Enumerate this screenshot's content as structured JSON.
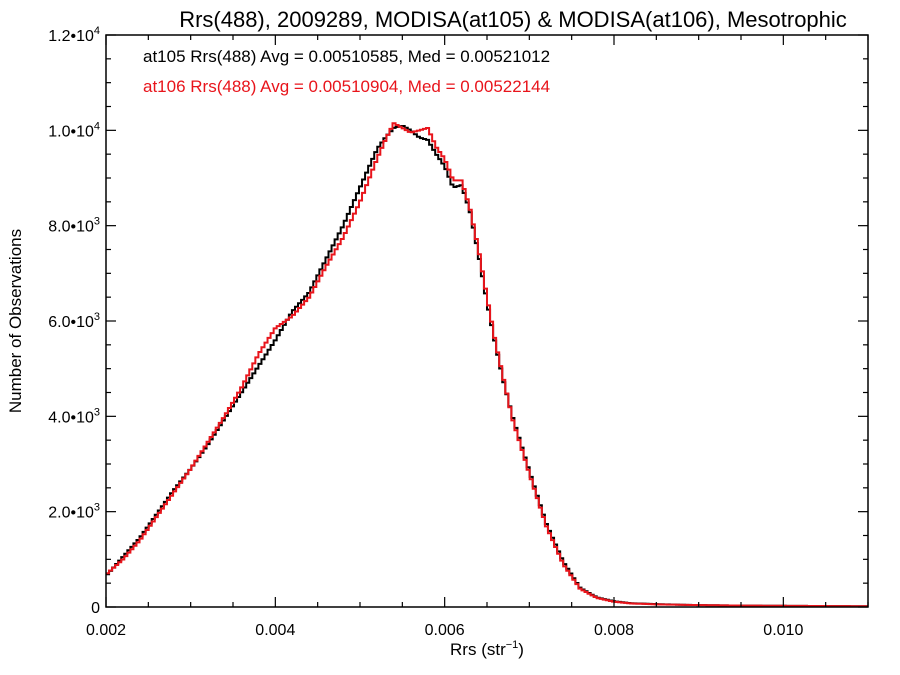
{
  "chart_data": {
    "type": "line",
    "step": true,
    "title": "Rrs(488), 2009289, MODISA(at105) & MODISA(at106), Mesotrophic",
    "xlabel_base": "Rrs (str",
    "xlabel_sup": "−1",
    "xlabel_tail": ")",
    "ylabel": "Number of Observations",
    "xlim": [
      0.002,
      0.011
    ],
    "ylim": [
      0,
      12000
    ],
    "x_ticks": [
      {
        "value": 0.002,
        "label": "0.002"
      },
      {
        "value": 0.004,
        "label": "0.004"
      },
      {
        "value": 0.006,
        "label": "0.006"
      },
      {
        "value": 0.008,
        "label": "0.008"
      },
      {
        "value": 0.01,
        "label": "0.010"
      }
    ],
    "y_ticks": [
      {
        "value": 0,
        "mant": "0",
        "exp": ""
      },
      {
        "value": 2000,
        "mant": "2.0•10",
        "exp": "3"
      },
      {
        "value": 4000,
        "mant": "4.0•10",
        "exp": "3"
      },
      {
        "value": 6000,
        "mant": "6.0•10",
        "exp": "3"
      },
      {
        "value": 8000,
        "mant": "8.0•10",
        "exp": "3"
      },
      {
        "value": 10000,
        "mant": "1.0•10",
        "exp": "4"
      },
      {
        "value": 12000,
        "mant": "1.2•10",
        "exp": "4"
      }
    ],
    "series": [
      {
        "name": "at105",
        "legend": "at105 Rrs(488) Avg = 0.00510585, Med = 0.00521012",
        "color": "#000000",
        "x": [
          0.002,
          0.0022,
          0.0024,
          0.0026,
          0.0028,
          0.003,
          0.0032,
          0.0034,
          0.0036,
          0.0038,
          0.004,
          0.0042,
          0.0044,
          0.0046,
          0.0048,
          0.005,
          0.0052,
          0.0053,
          0.0054,
          0.0055,
          0.0056,
          0.0057,
          0.0058,
          0.0059,
          0.006,
          0.0061,
          0.0062,
          0.0063,
          0.0064,
          0.0065,
          0.0066,
          0.0067,
          0.0068,
          0.007,
          0.0072,
          0.0074,
          0.0076,
          0.0078,
          0.008,
          0.0082,
          0.0085,
          0.009,
          0.0095,
          0.01,
          0.0105,
          0.011
        ],
        "values": [
          650,
          1050,
          1450,
          1950,
          2450,
          2900,
          3400,
          3950,
          4500,
          5050,
          5600,
          6200,
          6600,
          7300,
          8000,
          8800,
          9600,
          9850,
          10050,
          10100,
          10000,
          9850,
          9800,
          9500,
          9250,
          8800,
          8850,
          8300,
          7400,
          6400,
          5500,
          4700,
          4000,
          2850,
          1750,
          950,
          400,
          200,
          120,
          80,
          60,
          40,
          30,
          25,
          20,
          15
        ]
      },
      {
        "name": "at106",
        "legend": "at106 Rrs(488) Avg = 0.00510904, Med = 0.00522144",
        "color": "#e8141b",
        "x": [
          0.002,
          0.0022,
          0.0024,
          0.0026,
          0.0028,
          0.003,
          0.0032,
          0.0034,
          0.0036,
          0.0038,
          0.004,
          0.0042,
          0.0044,
          0.0046,
          0.0048,
          0.005,
          0.0052,
          0.0053,
          0.0054,
          0.0055,
          0.0056,
          0.0057,
          0.0058,
          0.0059,
          0.006,
          0.0061,
          0.0062,
          0.0063,
          0.0064,
          0.0065,
          0.0066,
          0.0067,
          0.0068,
          0.007,
          0.0072,
          0.0074,
          0.0076,
          0.0078,
          0.008,
          0.0082,
          0.0085,
          0.009,
          0.0095,
          0.01,
          0.0105,
          0.011
        ],
        "values": [
          680,
          1000,
          1400,
          1900,
          2400,
          2900,
          3450,
          4000,
          4600,
          5300,
          5850,
          6100,
          6500,
          7150,
          7750,
          8500,
          9400,
          9800,
          10150,
          10050,
          9950,
          10000,
          10050,
          9650,
          9400,
          8950,
          8950,
          8350,
          7500,
          6500,
          5550,
          4750,
          3950,
          2800,
          1700,
          900,
          380,
          190,
          110,
          75,
          55,
          40,
          30,
          25,
          20,
          15
        ]
      }
    ]
  }
}
